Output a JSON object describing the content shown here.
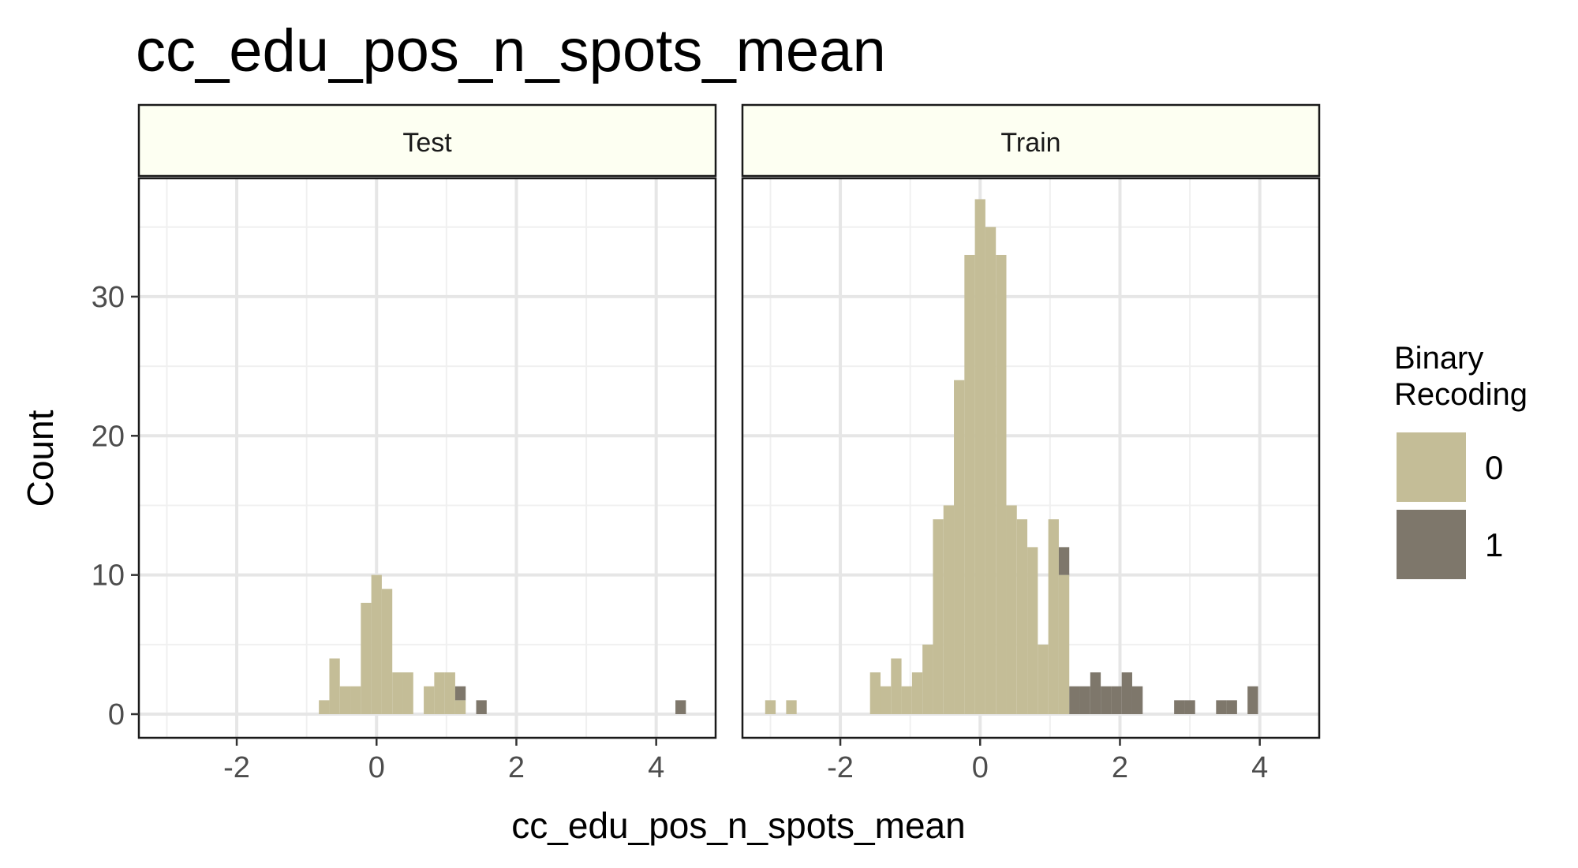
{
  "chart_data": {
    "type": "bar",
    "subtype": "histogram-faceted",
    "title": "cc_edu_pos_n_spots_mean",
    "xlabel": "cc_edu_pos_n_spots_mean",
    "ylabel": "Count",
    "xlim": [
      -3.4,
      4.85
    ],
    "ylim": [
      -1.7,
      38.5
    ],
    "x_ticks": [
      -2,
      0,
      2,
      4
    ],
    "x_minor": [
      -3,
      -1,
      1,
      3
    ],
    "y_ticks": [
      0,
      10,
      20,
      30
    ],
    "y_minor": [
      5,
      15,
      25,
      35
    ],
    "bin_width": 0.15,
    "grid": true,
    "legend": {
      "title_lines": [
        "Binary",
        "Recoding"
      ],
      "position": "right",
      "entries": [
        {
          "label": "0",
          "color": "#c4bd97"
        },
        {
          "label": "1",
          "color": "#7e776b"
        }
      ]
    },
    "panels": [
      {
        "label": "Test",
        "series": [
          {
            "name": "0",
            "color": "#c4bd97",
            "x": [
              -0.75,
              -0.6,
              -0.45,
              -0.3,
              -0.15,
              0.0,
              0.15,
              0.3,
              0.45,
              0.75,
              0.9,
              1.05,
              1.2
            ],
            "values": [
              1,
              4,
              2,
              2,
              8,
              10,
              9,
              3,
              3,
              2,
              3,
              3,
              1
            ]
          },
          {
            "name": "1",
            "color": "#7e776b",
            "x": [
              1.2,
              1.5,
              4.35
            ],
            "values": [
              1,
              1,
              1
            ]
          }
        ]
      },
      {
        "label": "Train",
        "series": [
          {
            "name": "0",
            "color": "#c4bd97",
            "x": [
              -3.0,
              -2.7,
              -1.5,
              -1.35,
              -1.2,
              -1.05,
              -0.9,
              -0.75,
              -0.6,
              -0.45,
              -0.3,
              -0.15,
              0.0,
              0.15,
              0.3,
              0.45,
              0.6,
              0.75,
              0.9,
              1.05,
              1.2
            ],
            "values": [
              1,
              1,
              3,
              2,
              4,
              2,
              3,
              5,
              14,
              15,
              24,
              33,
              37,
              35,
              33,
              15,
              14,
              12,
              5,
              14,
              10
            ]
          },
          {
            "name": "1",
            "color": "#7e776b",
            "x": [
              1.2,
              1.35,
              1.5,
              1.65,
              1.8,
              1.95,
              2.1,
              2.25,
              2.85,
              3.0,
              3.45,
              3.6,
              3.9
            ],
            "values": [
              2,
              2,
              2,
              3,
              2,
              2,
              3,
              2,
              1,
              1,
              1,
              1,
              2
            ]
          }
        ]
      }
    ]
  }
}
